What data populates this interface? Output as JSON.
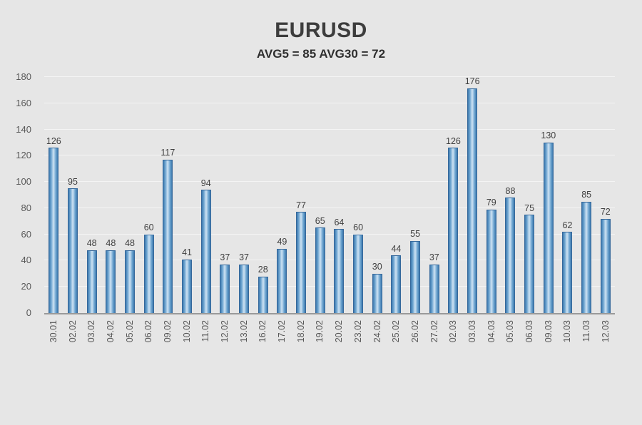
{
  "page": {
    "background": "#e6e6e6"
  },
  "header": {
    "title": "EURUSD",
    "subtitle": "AVG5 = 85 AVG30 = 72"
  },
  "chart_data": {
    "type": "bar",
    "title": "EURUSD",
    "subtitle": "AVG5 = 85 AVG30 = 72",
    "categories": [
      "30.01",
      "02.02",
      "03.02",
      "04.02",
      "05.02",
      "06.02",
      "09.02",
      "10.02",
      "11.02",
      "12.02",
      "13.02",
      "16.02",
      "17.02",
      "18.02",
      "19.02",
      "20.02",
      "23.02",
      "24.02",
      "25.02",
      "26.02",
      "27.02",
      "02.03",
      "03.03",
      "04.03",
      "05.03",
      "06.03",
      "09.03",
      "10.03",
      "11.03",
      "12.03"
    ],
    "values": [
      126,
      95,
      48,
      48,
      48,
      60,
      117,
      41,
      94,
      37,
      37,
      28,
      49,
      77,
      65,
      64,
      60,
      30,
      44,
      55,
      37,
      126,
      176,
      79,
      88,
      75,
      130,
      62,
      85,
      72
    ],
    "xlabel": "",
    "ylabel": "",
    "ylim": [
      0,
      180
    ],
    "ytick_step": 20,
    "grid": true,
    "legend": "none",
    "value_labels": true,
    "colors": {
      "bar_edge": "#3e79ae",
      "bar_mid": "#6ba3cf",
      "bar_center": "#cfe3f4",
      "bar_border": "#35689b",
      "gridline": "#f4f4f4",
      "axis": "#9a9a9a",
      "text": "#3d3d3d"
    }
  }
}
